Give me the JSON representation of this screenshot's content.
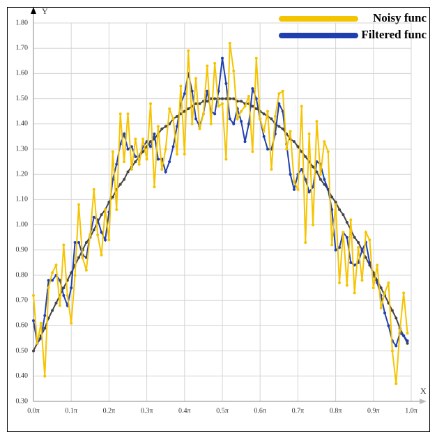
{
  "chart_data": {
    "type": "line",
    "x_label": "X",
    "y_label": "Y",
    "x": [
      0,
      0.01,
      0.02,
      0.03,
      0.04,
      0.05,
      0.06,
      0.07,
      0.08,
      0.09,
      0.1,
      0.11,
      0.12,
      0.13,
      0.14,
      0.15,
      0.16,
      0.17,
      0.18,
      0.19,
      0.2,
      0.21,
      0.22,
      0.23,
      0.24,
      0.25,
      0.26,
      0.27,
      0.28,
      0.29,
      0.3,
      0.31,
      0.32,
      0.33,
      0.34,
      0.35,
      0.36,
      0.37,
      0.38,
      0.39,
      0.4,
      0.41,
      0.42,
      0.43,
      0.44,
      0.45,
      0.46,
      0.47,
      0.48,
      0.49,
      0.5,
      0.51,
      0.52,
      0.53,
      0.54,
      0.55,
      0.56,
      0.57,
      0.58,
      0.59,
      0.6,
      0.61,
      0.62,
      0.63,
      0.64,
      0.65,
      0.66,
      0.67,
      0.68,
      0.69,
      0.7,
      0.71,
      0.72,
      0.73,
      0.74,
      0.75,
      0.76,
      0.77,
      0.78,
      0.79,
      0.8,
      0.81,
      0.82,
      0.83,
      0.84,
      0.85,
      0.86,
      0.87,
      0.88,
      0.89,
      0.9,
      0.91,
      0.92,
      0.93,
      0.94,
      0.95,
      0.96,
      0.97,
      0.98,
      0.99
    ],
    "series": [
      {
        "name": "Noisy func",
        "color": "#f5c400",
        "values": [
          0.72,
          0.53,
          0.61,
          0.4,
          0.75,
          0.81,
          0.84,
          0.68,
          0.92,
          0.72,
          0.61,
          0.8,
          1.08,
          0.87,
          0.82,
          0.96,
          1.14,
          0.96,
          0.88,
          1.06,
          0.94,
          1.29,
          1.06,
          1.44,
          1.25,
          1.44,
          1.22,
          1.34,
          1.24,
          1.34,
          1.26,
          1.48,
          1.15,
          1.39,
          1.22,
          1.3,
          1.46,
          1.42,
          1.28,
          1.55,
          1.28,
          1.69,
          1.4,
          1.58,
          1.38,
          1.44,
          1.63,
          1.4,
          1.64,
          1.47,
          1.48,
          1.26,
          1.72,
          1.61,
          1.42,
          1.45,
          1.47,
          1.51,
          1.29,
          1.66,
          1.42,
          1.37,
          1.45,
          1.22,
          1.43,
          1.52,
          1.53,
          1.3,
          1.37,
          1.17,
          1.14,
          1.47,
          0.93,
          1.36,
          1.0,
          1.41,
          1.2,
          1.33,
          1.29,
          0.92,
          1.08,
          0.77,
          0.97,
          0.76,
          1.02,
          0.73,
          0.91,
          0.78,
          0.97,
          0.94,
          0.75,
          0.84,
          0.67,
          0.73,
          0.77,
          0.5,
          0.37,
          0.58,
          0.73,
          0.57
        ]
      },
      {
        "name": "Filtered func",
        "color": "#1f3fb0",
        "values": [
          0.62,
          0.53,
          0.55,
          0.64,
          0.78,
          0.78,
          0.8,
          0.78,
          0.72,
          0.68,
          0.75,
          0.93,
          0.93,
          0.88,
          0.87,
          0.96,
          1.03,
          1.02,
          0.97,
          0.94,
          1.05,
          1.18,
          1.24,
          1.32,
          1.36,
          1.3,
          1.31,
          1.27,
          1.27,
          1.31,
          1.33,
          1.31,
          1.36,
          1.26,
          1.26,
          1.21,
          1.25,
          1.31,
          1.39,
          1.48,
          1.52,
          1.6,
          1.53,
          1.42,
          1.39,
          1.44,
          1.53,
          1.45,
          1.44,
          1.53,
          1.66,
          1.56,
          1.42,
          1.4,
          1.46,
          1.41,
          1.33,
          1.4,
          1.54,
          1.5,
          1.42,
          1.35,
          1.3,
          1.3,
          1.36,
          1.48,
          1.45,
          1.32,
          1.2,
          1.14,
          1.2,
          1.22,
          1.18,
          1.13,
          1.15,
          1.25,
          1.24,
          1.18,
          1.14,
          1.06,
          0.9,
          0.91,
          0.97,
          0.95,
          0.85,
          0.84,
          0.85,
          0.9,
          0.93,
          0.85,
          0.8,
          0.77,
          0.72,
          0.65,
          0.6,
          0.54,
          0.52,
          0.57,
          0.56,
          0.54
        ]
      },
      {
        "color": "#444444",
        "values": [
          0.5,
          0.53,
          0.56,
          0.59,
          0.63,
          0.66,
          0.69,
          0.72,
          0.75,
          0.78,
          0.81,
          0.84,
          0.87,
          0.9,
          0.93,
          0.95,
          0.98,
          1.01,
          1.04,
          1.06,
          1.09,
          1.11,
          1.14,
          1.16,
          1.18,
          1.21,
          1.23,
          1.25,
          1.27,
          1.29,
          1.31,
          1.33,
          1.34,
          1.36,
          1.38,
          1.39,
          1.4,
          1.42,
          1.43,
          1.44,
          1.45,
          1.46,
          1.47,
          1.48,
          1.48,
          1.49,
          1.49,
          1.5,
          1.5,
          1.5,
          1.5,
          1.5,
          1.5,
          1.5,
          1.49,
          1.49,
          1.48,
          1.48,
          1.47,
          1.46,
          1.45,
          1.44,
          1.43,
          1.42,
          1.4,
          1.39,
          1.38,
          1.36,
          1.34,
          1.33,
          1.31,
          1.29,
          1.27,
          1.25,
          1.23,
          1.21,
          1.18,
          1.16,
          1.14,
          1.11,
          1.09,
          1.06,
          1.04,
          1.01,
          0.98,
          0.95,
          0.93,
          0.9,
          0.87,
          0.84,
          0.81,
          0.78,
          0.75,
          0.72,
          0.69,
          0.66,
          0.63,
          0.59,
          0.56,
          0.53
        ]
      }
    ],
    "xlim": [
      0,
      1
    ],
    "xticks": [
      {
        "value": 0,
        "label": "0.0π"
      },
      {
        "value": 0.1,
        "label": "0.1π"
      },
      {
        "value": 0.2,
        "label": "0.2π"
      },
      {
        "value": 0.3,
        "label": "0.3π"
      },
      {
        "value": 0.4,
        "label": "0.4π"
      },
      {
        "value": 0.5,
        "label": "0.5π"
      },
      {
        "value": 0.6,
        "label": "0.6π"
      },
      {
        "value": 0.7,
        "label": "0.7π"
      },
      {
        "value": 0.8,
        "label": "0.8π"
      },
      {
        "value": 0.9,
        "label": "0.9π"
      },
      {
        "value": 1,
        "label": "1.0π"
      }
    ],
    "ylim": [
      0.3,
      1.8
    ],
    "yticks": [
      {
        "value": 0.3,
        "label": "0.30"
      },
      {
        "value": 0.4,
        "label": "0.40"
      },
      {
        "value": 0.5,
        "label": "0.50"
      },
      {
        "value": 0.6,
        "label": "0.60"
      },
      {
        "value": 0.7,
        "label": "0.70"
      },
      {
        "value": 0.8,
        "label": "0.80"
      },
      {
        "value": 0.9,
        "label": "0.90"
      },
      {
        "value": 1,
        "label": "1.00"
      },
      {
        "value": 1.1,
        "label": "1.10"
      },
      {
        "value": 1.2,
        "label": "1.20"
      },
      {
        "value": 1.3,
        "label": "1.30"
      },
      {
        "value": 1.4,
        "label": "1.40"
      },
      {
        "value": 1.5,
        "label": "1.50"
      },
      {
        "value": 1.6,
        "label": "1.60"
      },
      {
        "value": 1.7,
        "label": "1.70"
      },
      {
        "value": 1.8,
        "label": "1.80"
      }
    ],
    "grid": true,
    "legend_position": "top-right"
  }
}
